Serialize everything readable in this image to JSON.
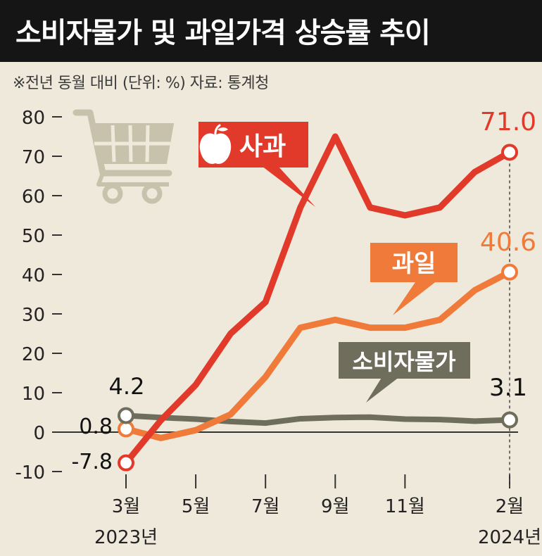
{
  "header": {
    "title": "소비자물가 및 과일가격 상승률 추이",
    "subtitle": "※전년 동월 대비 (단위: %) 자료: 통계청"
  },
  "chart_data": {
    "type": "line",
    "title": "소비자물가 및 과일가격 상승률 추이",
    "xlabel": "",
    "ylabel": "",
    "ylim": [
      -10,
      80
    ],
    "yticks": [
      -10,
      0,
      10,
      20,
      30,
      40,
      50,
      60,
      70,
      80
    ],
    "ytick_labels": [
      "-10",
      "0",
      "10",
      "20",
      "30",
      "40",
      "50",
      "60",
      "70",
      "80"
    ],
    "x": [
      "2023-03",
      "2023-04",
      "2023-05",
      "2023-06",
      "2023-07",
      "2023-08",
      "2023-09",
      "2023-10",
      "2023-11",
      "2023-12",
      "2024-01",
      "2024-02"
    ],
    "xticks": [
      {
        "month": "2023-03",
        "label": "3월",
        "sublabel": "2023년"
      },
      {
        "month": "2023-05",
        "label": "5월",
        "sublabel": ""
      },
      {
        "month": "2023-07",
        "label": "7월",
        "sublabel": ""
      },
      {
        "month": "2023-09",
        "label": "9월",
        "sublabel": ""
      },
      {
        "month": "2023-11",
        "label": "11월",
        "sublabel": ""
      },
      {
        "month": "2024-02",
        "label": "2월",
        "sublabel": "2024년"
      }
    ],
    "series": [
      {
        "name": "사과",
        "color": "#e23a2a",
        "values": [
          -7.8,
          3.0,
          12.0,
          25.0,
          33.0,
          57.0,
          75.0,
          57.0,
          55.0,
          57.0,
          66.0,
          71.0
        ],
        "start_label": "-7.8",
        "end_label": "71.0"
      },
      {
        "name": "과일",
        "color": "#f07a3a",
        "values": [
          0.8,
          -1.5,
          0.5,
          4.5,
          14.0,
          26.5,
          28.5,
          26.5,
          26.5,
          28.5,
          36.0,
          40.6
        ],
        "start_label": "0.8",
        "end_label": "40.6"
      },
      {
        "name": "소비자물가",
        "color": "#6f6e5c",
        "values": [
          4.2,
          3.7,
          3.3,
          2.7,
          2.3,
          3.4,
          3.7,
          3.8,
          3.3,
          3.2,
          2.8,
          3.1
        ],
        "start_label": "4.2",
        "end_label": "3.1"
      }
    ],
    "legend": "inline callout labels",
    "grid": false,
    "icons": [
      "shopping-cart-icon",
      "apple-icon"
    ]
  }
}
